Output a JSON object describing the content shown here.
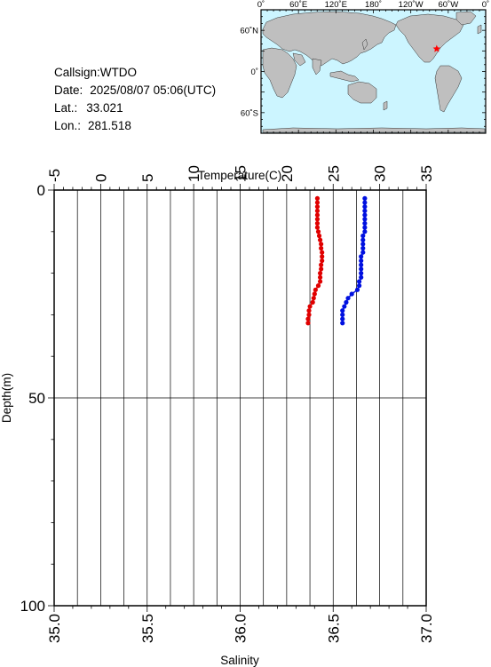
{
  "station": {
    "callsign_label": "Callsign:",
    "callsign": "WTDO",
    "date_label": "Date:",
    "date": "2025/08/07 05:06(UTC)",
    "lat_label": "Lat.:",
    "lat": "33.021",
    "lon_label": "Lon.:",
    "lon": "281.518"
  },
  "map": {
    "top_labels": [
      "0˚",
      "60˚E",
      "120˚E",
      "180˚",
      "120˚W",
      "60˚W",
      "0˚"
    ],
    "left_labels": [
      "60˚N",
      "0˚",
      "60˚S"
    ],
    "ocean_color": "#ccf5ff",
    "land_color": "#bfbfbf",
    "marker_color": "#ff0000",
    "marker": {
      "lat": 33.021,
      "lon": 281.518
    }
  },
  "chart_data": {
    "type": "scatter",
    "ylabel": "Depth(m)",
    "ylim": [
      0,
      100
    ],
    "yticks": [
      "0",
      "50",
      "100"
    ],
    "top_axis": {
      "label": "Temperature(C)",
      "range": [
        -5,
        35
      ],
      "ticks": [
        "-5",
        "0",
        "5",
        "10",
        "15",
        "20",
        "25",
        "30",
        "35"
      ]
    },
    "bottom_axis": {
      "label": "Salinity",
      "range": [
        35.0,
        37.0
      ],
      "ticks": [
        "35.0",
        "35.5",
        "36.0",
        "36.5",
        "37.0"
      ]
    },
    "grid": true,
    "series": [
      {
        "axis": "top",
        "color": "#e00000",
        "points": [
          [
            23.3,
            2
          ],
          [
            23.3,
            3
          ],
          [
            23.3,
            4
          ],
          [
            23.3,
            5
          ],
          [
            23.3,
            6
          ],
          [
            23.3,
            7
          ],
          [
            23.3,
            8
          ],
          [
            23.3,
            9
          ],
          [
            23.4,
            10
          ],
          [
            23.5,
            11
          ],
          [
            23.6,
            12
          ],
          [
            23.7,
            13
          ],
          [
            23.7,
            14
          ],
          [
            23.8,
            15
          ],
          [
            23.8,
            16
          ],
          [
            23.8,
            17
          ],
          [
            23.7,
            18
          ],
          [
            23.7,
            19
          ],
          [
            23.6,
            20
          ],
          [
            23.6,
            21
          ],
          [
            23.6,
            22
          ],
          [
            23.4,
            23
          ],
          [
            23.1,
            24
          ],
          [
            23.0,
            25
          ],
          [
            22.9,
            26
          ],
          [
            22.8,
            27
          ],
          [
            22.5,
            28
          ],
          [
            22.4,
            29
          ],
          [
            22.4,
            30
          ],
          [
            22.3,
            31
          ],
          [
            22.3,
            32
          ]
        ]
      },
      {
        "axis": "bottom",
        "color": "#0010e0",
        "points": [
          [
            36.67,
            2
          ],
          [
            36.67,
            3
          ],
          [
            36.67,
            4
          ],
          [
            36.67,
            5
          ],
          [
            36.67,
            6
          ],
          [
            36.67,
            7
          ],
          [
            36.67,
            8
          ],
          [
            36.67,
            9
          ],
          [
            36.67,
            10
          ],
          [
            36.66,
            11
          ],
          [
            36.66,
            12
          ],
          [
            36.66,
            13
          ],
          [
            36.66,
            14
          ],
          [
            36.66,
            15
          ],
          [
            36.65,
            16
          ],
          [
            36.65,
            17
          ],
          [
            36.65,
            18
          ],
          [
            36.65,
            19
          ],
          [
            36.65,
            20
          ],
          [
            36.65,
            21
          ],
          [
            36.64,
            22
          ],
          [
            36.64,
            23
          ],
          [
            36.63,
            24
          ],
          [
            36.6,
            25
          ],
          [
            36.58,
            26
          ],
          [
            36.57,
            27
          ],
          [
            36.56,
            28
          ],
          [
            36.55,
            29
          ],
          [
            36.55,
            30
          ],
          [
            36.55,
            31
          ],
          [
            36.55,
            32
          ]
        ]
      }
    ]
  }
}
